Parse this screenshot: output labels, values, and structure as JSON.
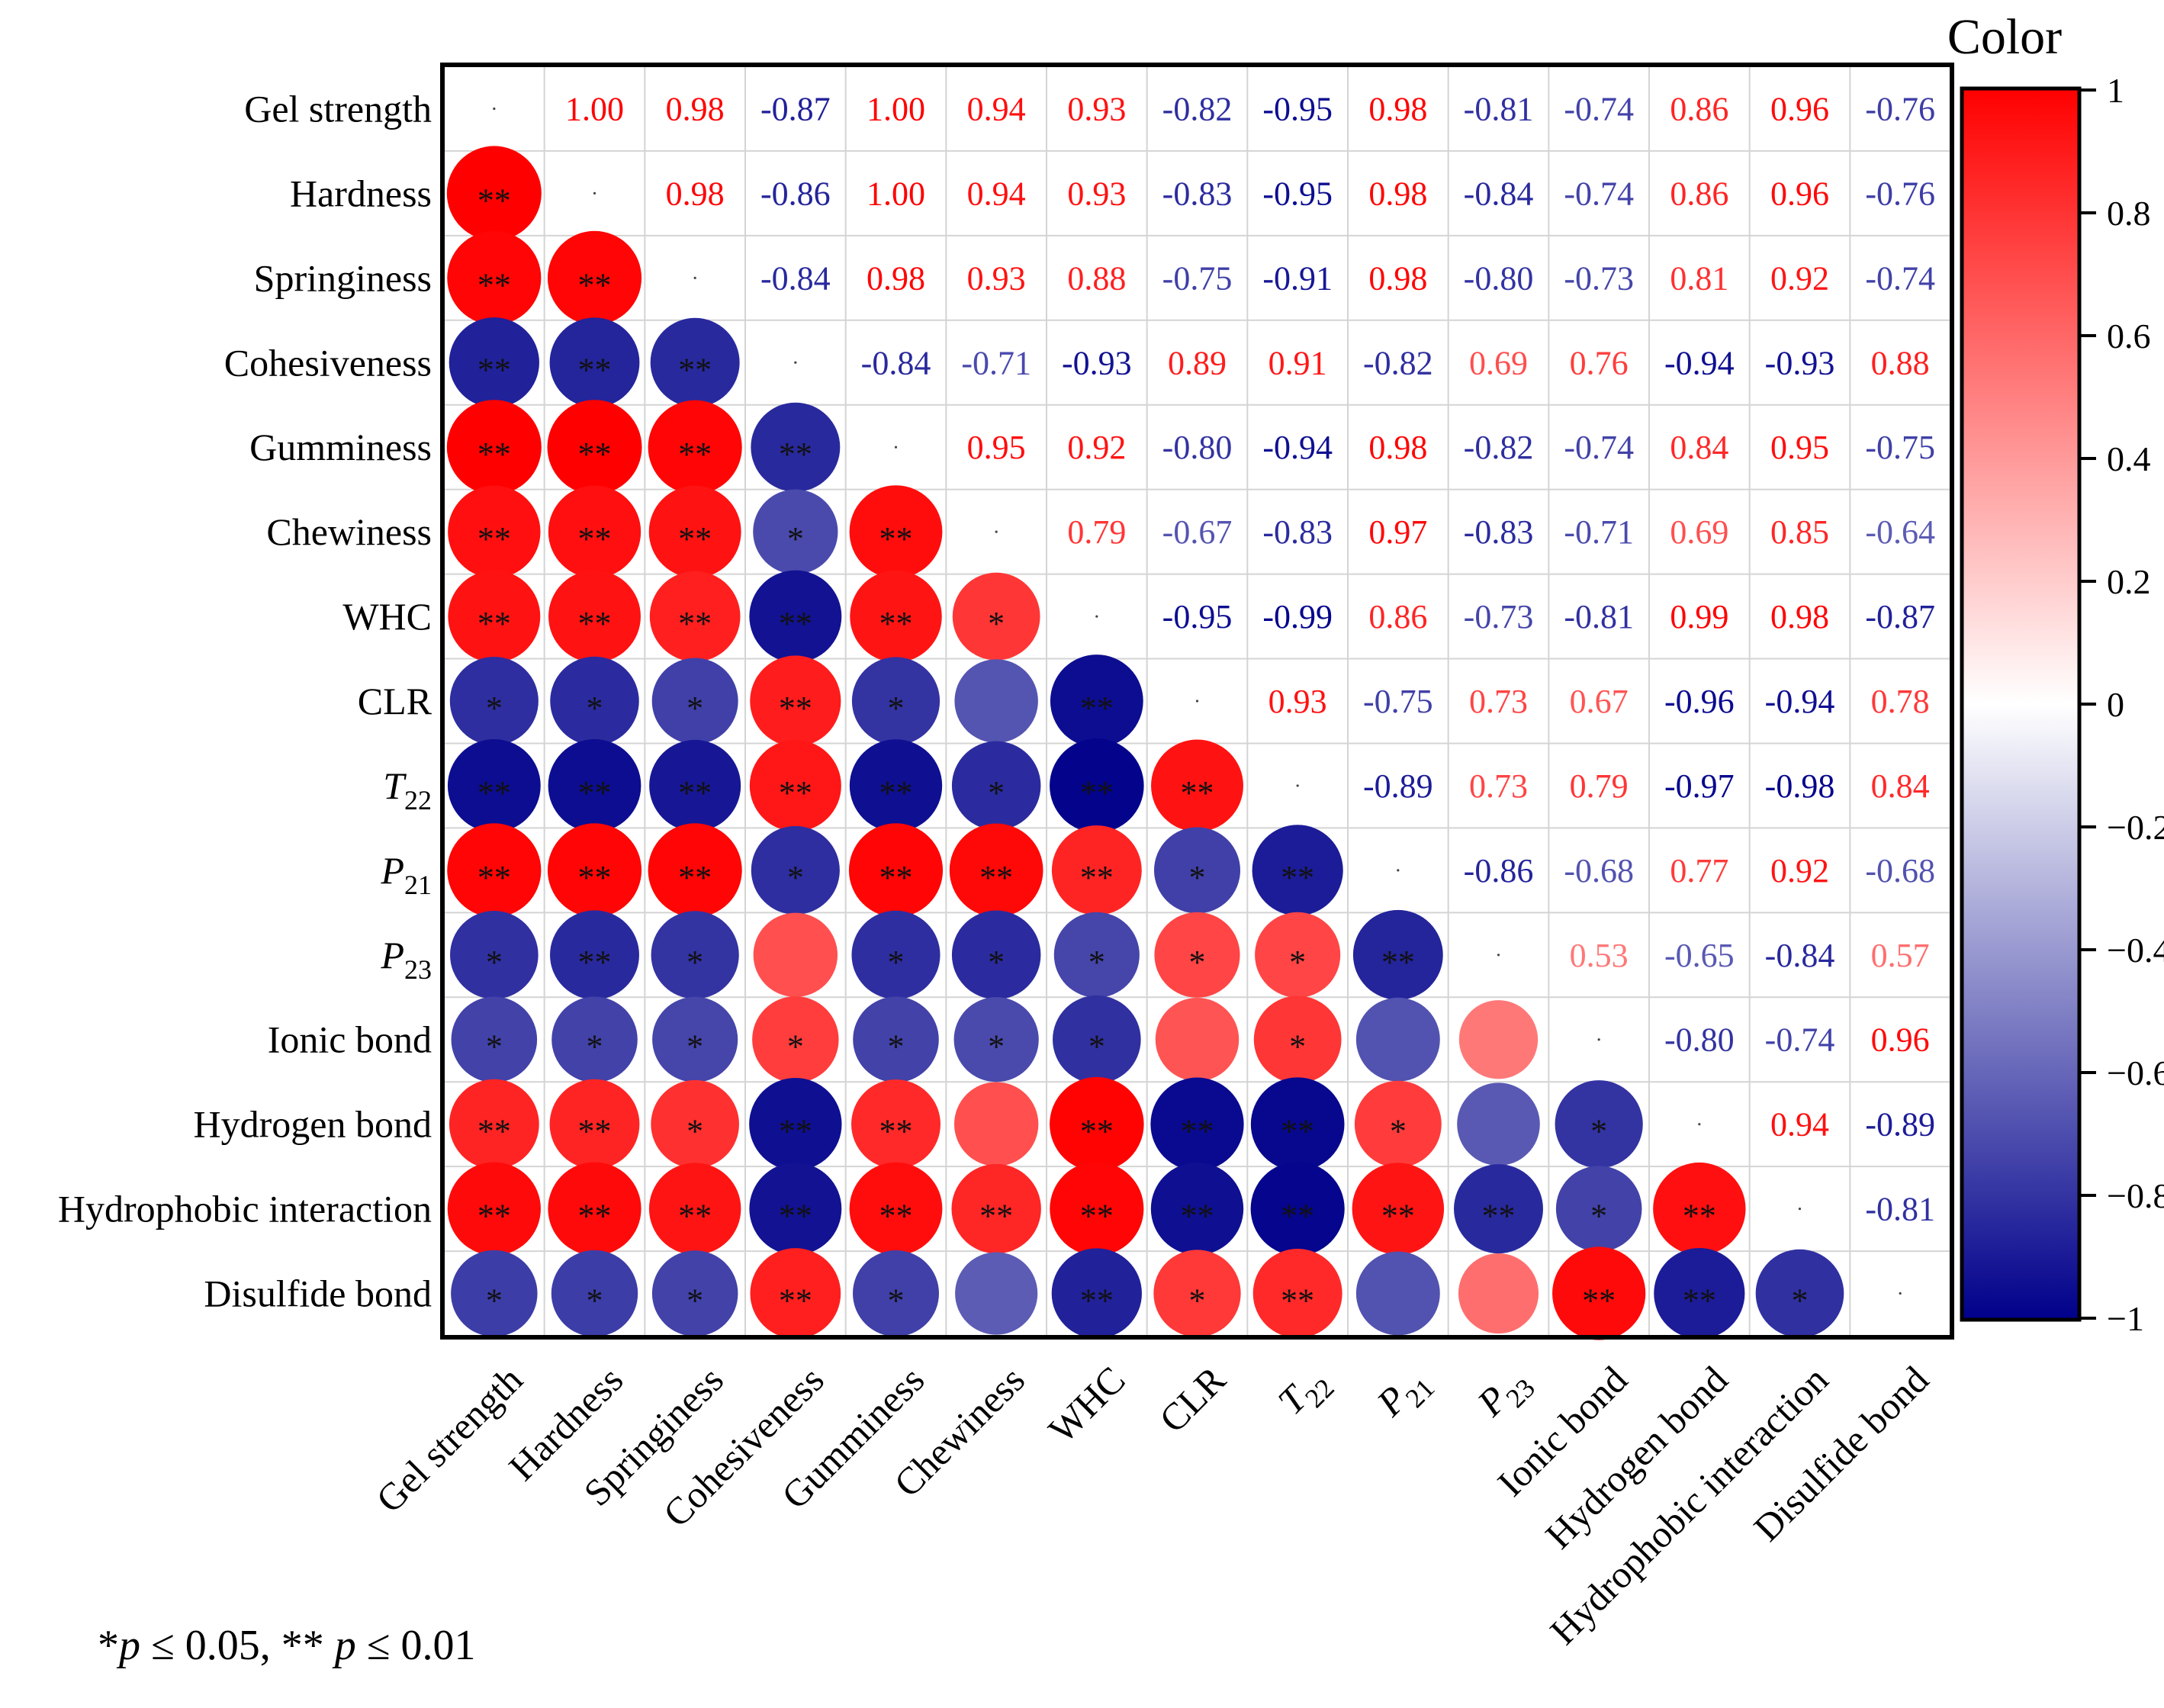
{
  "chart_data": {
    "type": "heatmap",
    "title": "",
    "variables": [
      {
        "label": "Gel strength"
      },
      {
        "label": "Hardness"
      },
      {
        "label": "Springiness"
      },
      {
        "label": "Cohesiveness"
      },
      {
        "label": "Gumminess"
      },
      {
        "label": "Chewiness"
      },
      {
        "label": "WHC"
      },
      {
        "label": "CLR"
      },
      {
        "label": "T",
        "sub": "22",
        "italic": true
      },
      {
        "label": "P",
        "sub": "21",
        "italic": true
      },
      {
        "label": "P",
        "sub": "23",
        "italic": true
      },
      {
        "label": "Ionic bond"
      },
      {
        "label": "Hydrogen bond"
      },
      {
        "label": "Hydrophobic interaction"
      },
      {
        "label": "Disulfide bond"
      }
    ],
    "upper_values": [
      [
        null,
        "1.00",
        "0.98",
        "-0.87",
        "1.00",
        "0.94",
        "0.93",
        "-0.82",
        "-0.95",
        "0.98",
        "-0.81",
        "-0.74",
        "0.86",
        "0.96",
        "-0.76"
      ],
      [
        null,
        null,
        "0.98",
        "-0.86",
        "1.00",
        "0.94",
        "0.93",
        "-0.83",
        "-0.95",
        "0.98",
        "-0.84",
        "-0.74",
        "0.86",
        "0.96",
        "-0.76"
      ],
      [
        null,
        null,
        null,
        "-0.84",
        "0.98",
        "0.93",
        "0.88",
        "-0.75",
        "-0.91",
        "0.98",
        "-0.80",
        "-0.73",
        "0.81",
        "0.92",
        "-0.74"
      ],
      [
        null,
        null,
        null,
        null,
        "-0.84",
        "-0.71",
        "-0.93",
        "0.89",
        "0.91",
        "-0.82",
        "0.69",
        "0.76",
        "-0.94",
        "-0.93",
        "0.88"
      ],
      [
        null,
        null,
        null,
        null,
        null,
        "0.95",
        "0.92",
        "-0.80",
        "-0.94",
        "0.98",
        "-0.82",
        "-0.74",
        "0.84",
        "0.95",
        "-0.75"
      ],
      [
        null,
        null,
        null,
        null,
        null,
        null,
        "0.79",
        "-0.67",
        "-0.83",
        "0.97",
        "-0.83",
        "-0.71",
        "0.69",
        "0.85",
        "-0.64"
      ],
      [
        null,
        null,
        null,
        null,
        null,
        null,
        null,
        "-0.95",
        "-0.99",
        "0.86",
        "-0.73",
        "-0.81",
        "0.99",
        "0.98",
        "-0.87"
      ],
      [
        null,
        null,
        null,
        null,
        null,
        null,
        null,
        null,
        "0.93",
        "-0.75",
        "0.73",
        "0.67",
        "-0.96",
        "-0.94",
        "0.78"
      ],
      [
        null,
        null,
        null,
        null,
        null,
        null,
        null,
        null,
        null,
        "-0.89",
        "0.73",
        "0.79",
        "-0.97",
        "-0.98",
        "0.84"
      ],
      [
        null,
        null,
        null,
        null,
        null,
        null,
        null,
        null,
        null,
        null,
        "-0.86",
        "-0.68",
        "0.77",
        "0.92",
        "-0.68"
      ],
      [
        null,
        null,
        null,
        null,
        null,
        null,
        null,
        null,
        null,
        null,
        null,
        "0.53",
        "-0.65",
        "-0.84",
        "0.57"
      ],
      [
        null,
        null,
        null,
        null,
        null,
        null,
        null,
        null,
        null,
        null,
        null,
        null,
        "-0.80",
        "-0.74",
        "0.96"
      ],
      [
        null,
        null,
        null,
        null,
        null,
        null,
        null,
        null,
        null,
        null,
        null,
        null,
        null,
        "0.94",
        "-0.89"
      ],
      [
        null,
        null,
        null,
        null,
        null,
        null,
        null,
        null,
        null,
        null,
        null,
        null,
        null,
        null,
        "-0.81"
      ],
      [
        null,
        null,
        null,
        null,
        null,
        null,
        null,
        null,
        null,
        null,
        null,
        null,
        null,
        null,
        null
      ]
    ],
    "lower_significance": [
      [],
      [
        "**"
      ],
      [
        "**",
        "**"
      ],
      [
        "**",
        "**",
        "**"
      ],
      [
        "**",
        "**",
        "**",
        "**"
      ],
      [
        "**",
        "**",
        "**",
        "*",
        "**"
      ],
      [
        "**",
        "**",
        "**",
        "**",
        "**",
        "*"
      ],
      [
        "*",
        "*",
        "*",
        "**",
        "*",
        "",
        "**"
      ],
      [
        "**",
        "**",
        "**",
        "**",
        "**",
        "*",
        "**",
        "**"
      ],
      [
        "**",
        "**",
        "**",
        "*",
        "**",
        "**",
        "**",
        "*",
        "**"
      ],
      [
        "*",
        "**",
        "*",
        "",
        "*",
        "*",
        "*",
        "*",
        "*",
        "**"
      ],
      [
        "*",
        "*",
        "*",
        "*",
        "*",
        "*",
        "*",
        "",
        "*",
        "",
        ""
      ],
      [
        "**",
        "**",
        "*",
        "**",
        "**",
        "",
        "**",
        "**",
        "**",
        "*",
        "",
        "*"
      ],
      [
        "**",
        "**",
        "**",
        "**",
        "**",
        "**",
        "**",
        "**",
        "**",
        "**",
        "**",
        "*",
        "**"
      ],
      [
        "*",
        "*",
        "*",
        "**",
        "*",
        "",
        "**",
        "*",
        "**",
        "",
        "",
        "**",
        "**",
        "*"
      ]
    ],
    "colorbar": {
      "title": "Color",
      "range": [
        -1,
        1
      ],
      "ticks": [
        {
          "value": 1,
          "label": "1"
        },
        {
          "value": 0.8,
          "label": "0.8"
        },
        {
          "value": 0.6,
          "label": "0.6"
        },
        {
          "value": 0.4,
          "label": "0.4"
        },
        {
          "value": 0.2,
          "label": "0.2"
        },
        {
          "value": 0,
          "label": "0"
        },
        {
          "value": -0.2,
          "label": "−0.2"
        },
        {
          "value": -0.4,
          "label": "−0.4"
        },
        {
          "value": -0.6,
          "label": "−0.6"
        },
        {
          "value": -0.8,
          "label": "−0.8"
        },
        {
          "value": -1,
          "label": "−1"
        }
      ],
      "colors": {
        "negative": "#00008B",
        "zero": "#FFFFFF",
        "positive": "#FF0000"
      }
    },
    "footnote": {
      "star1": "*",
      "p": "p",
      "le1": " ≤ 0.05, ** ",
      "le2": " ≤ 0.01"
    }
  }
}
